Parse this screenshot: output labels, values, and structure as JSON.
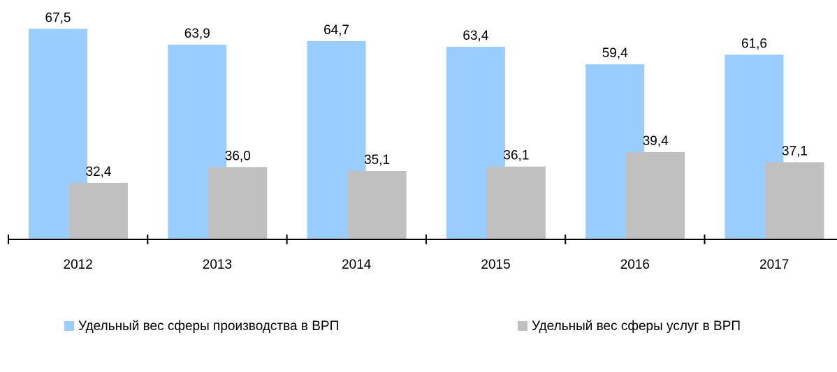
{
  "chart_data": {
    "type": "bar",
    "categories": [
      "2012",
      "2013",
      "2014",
      "2015",
      "2016",
      "2017"
    ],
    "series": [
      {
        "name": "Удельный вес сферы производства в ВРП",
        "color": "#99ccff",
        "values": [
          67.5,
          63.9,
          64.7,
          63.4,
          59.4,
          61.6
        ],
        "value_labels": [
          "67,5",
          "63,9",
          "64,7",
          "63,4",
          "59,4",
          "61,6"
        ]
      },
      {
        "name": "Удельный вес сферы услуг в ВРП",
        "color": "#c0c0c0",
        "values": [
          32.4,
          36.0,
          35.1,
          36.1,
          39.4,
          37.1
        ],
        "value_labels": [
          "32,4",
          "36,0",
          "35,1",
          "36,1",
          "39,4",
          "37,1"
        ]
      }
    ],
    "ylim": [
      19.5,
      72
    ]
  }
}
